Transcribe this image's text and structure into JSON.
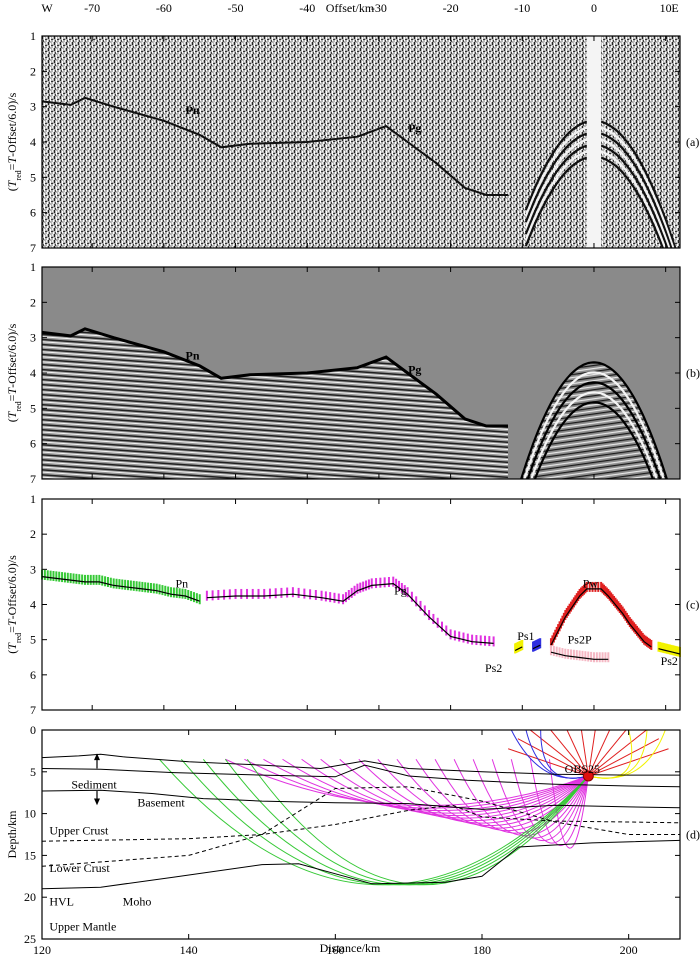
{
  "figure": {
    "top_axis": {
      "title": "Offset/km",
      "left_end": "W",
      "right_end": "E",
      "ticks": [
        -70,
        -60,
        -50,
        -40,
        -30,
        -20,
        -10,
        0,
        10
      ],
      "range": [
        -77,
        12
      ]
    },
    "bottom_axis": {
      "title": "Distance/km",
      "ticks": [
        120,
        140,
        160,
        180,
        200
      ],
      "range": [
        120,
        207
      ]
    }
  },
  "chart_data": [
    {
      "type": "heatmap",
      "panel_label": "(a)",
      "ylabel": "(T_red=T-Offset/6.0)/s",
      "yticks": [
        1,
        2,
        3,
        4,
        5,
        6,
        7
      ],
      "ylim": [
        1,
        7
      ],
      "annotations": [
        {
          "text": "Pn",
          "x": -56,
          "y": 3.1
        },
        {
          "text": "Pg",
          "x": -25,
          "y": 3.6
        }
      ]
    },
    {
      "type": "heatmap",
      "panel_label": "(b)",
      "ylabel": "(T_red=T-Offset/6.0)/s",
      "yticks": [
        1,
        2,
        3,
        4,
        5,
        6,
        7
      ],
      "ylim": [
        1,
        7
      ],
      "annotations": [
        {
          "text": "Pn",
          "x": -56,
          "y": 3.5
        },
        {
          "text": "Pg",
          "x": -25,
          "y": 3.9
        }
      ],
      "first_arrival": [
        [
          -77,
          2.85
        ],
        [
          -73,
          2.95
        ],
        [
          -71,
          2.75
        ],
        [
          -67,
          3.0
        ],
        [
          -60,
          3.4
        ],
        [
          -55,
          3.8
        ],
        [
          -52,
          4.15
        ],
        [
          -48,
          4.05
        ],
        [
          -40,
          4.0
        ],
        [
          -33,
          3.85
        ],
        [
          -29,
          3.55
        ],
        [
          -26,
          4.0
        ],
        [
          -22,
          4.6
        ],
        [
          -18,
          5.3
        ],
        [
          -15,
          5.5
        ],
        [
          -12,
          5.5
        ]
      ]
    },
    {
      "type": "scatter",
      "panel_label": "(c)",
      "ylabel": "(T_red=T-Offset/6.0)/s",
      "yticks": [
        1,
        2,
        3,
        4,
        5,
        6,
        7
      ],
      "ylim": [
        1,
        7
      ],
      "labels": [
        {
          "text": "Pn",
          "x": -57.5,
          "y": 3.4
        },
        {
          "text": "Pg",
          "x": -27,
          "y": 3.6
        },
        {
          "text": "Pw",
          "x": -0.5,
          "y": 3.4
        },
        {
          "text": "Ps1",
          "x": -9.5,
          "y": 4.9
        },
        {
          "text": "Ps2P",
          "x": -2,
          "y": 5.0
        },
        {
          "text": "Ps2",
          "x": -14,
          "y": 5.8
        },
        {
          "text": "Ps2",
          "x": 10.5,
          "y": 5.6
        }
      ],
      "series": [
        {
          "name": "Pn",
          "color": "#36c936",
          "x": [
            -77,
            -75,
            -73,
            -71,
            -69,
            -67,
            -65,
            -63,
            -61,
            -59,
            -57,
            -55
          ],
          "y": [
            3.15,
            3.2,
            3.25,
            3.3,
            3.3,
            3.4,
            3.45,
            3.5,
            3.55,
            3.65,
            3.7,
            3.85
          ]
        },
        {
          "name": "Pg",
          "color": "#e033e0",
          "x": [
            -54,
            -50,
            -46,
            -42,
            -38,
            -35,
            -33,
            -31,
            -28,
            -26,
            -23,
            -20,
            -17,
            -14
          ],
          "y": [
            3.75,
            3.7,
            3.7,
            3.65,
            3.75,
            3.85,
            3.55,
            3.4,
            3.35,
            3.65,
            4.3,
            4.85,
            5.0,
            5.05
          ]
        },
        {
          "name": "Ps2",
          "color": "#f2f200",
          "x": [
            -11,
            -10.5,
            -10
          ],
          "y": [
            5.25,
            5.2,
            5.15
          ]
        },
        {
          "name": "Ps1",
          "color": "#3030e0",
          "x": [
            -8.5,
            -8,
            -7.5
          ],
          "y": [
            5.2,
            5.15,
            5.1
          ]
        },
        {
          "name": "Pw",
          "color": "#e02020",
          "x": [
            -6,
            -5,
            -4,
            -3,
            -2,
            -1,
            1,
            2,
            3,
            4,
            5,
            6,
            7,
            8
          ],
          "y": [
            5.1,
            4.7,
            4.3,
            4.0,
            3.7,
            3.5,
            3.5,
            3.7,
            3.95,
            4.2,
            4.5,
            4.75,
            5.0,
            5.15
          ]
        },
        {
          "name": "Ps2P",
          "color": "#f5b8c4",
          "x": [
            -6,
            -4,
            -2,
            0,
            2
          ],
          "y": [
            5.3,
            5.4,
            5.45,
            5.5,
            5.5
          ]
        },
        {
          "name": "Ps2",
          "color": "#f2f200",
          "x": [
            9,
            10,
            11,
            12
          ],
          "y": [
            5.2,
            5.25,
            5.3,
            5.35
          ]
        }
      ]
    },
    {
      "type": "line",
      "panel_label": "(d)",
      "ylabel": "Depth/km",
      "xlabel": "Distance/km",
      "yticks": [
        0,
        5,
        10,
        15,
        20,
        25
      ],
      "ylim": [
        0,
        25
      ],
      "xlim": [
        120,
        207
      ],
      "station": {
        "name": "OBS25",
        "x": 194.5,
        "depth": 5.5
      },
      "layer_labels": [
        {
          "text": "Sediment",
          "x": 124,
          "y": 6.5
        },
        {
          "text": "Basement",
          "x": 133,
          "y": 8.7
        },
        {
          "text": "Upper Crust",
          "x": 121,
          "y": 12
        },
        {
          "text": "Lower Crust",
          "x": 121,
          "y": 16.5
        },
        {
          "text": "HVL",
          "x": 121,
          "y": 20.5
        },
        {
          "text": "Moho",
          "x": 131,
          "y": 20.5
        },
        {
          "text": "Upper Mantle",
          "x": 121,
          "y": 23.5
        }
      ],
      "interfaces": [
        {
          "name": "Seafloor",
          "style": "solid",
          "x": [
            120,
            125,
            128,
            131,
            140,
            150,
            158,
            164,
            170,
            180,
            190,
            200,
            207
          ],
          "y": [
            3.3,
            3.1,
            2.9,
            3.2,
            3.8,
            4.2,
            4.6,
            3.7,
            4.6,
            5.0,
            5.3,
            5.4,
            5.4
          ]
        },
        {
          "name": "Sediment base",
          "style": "solid",
          "x": [
            120,
            128,
            138,
            150,
            160,
            164,
            170,
            178,
            185,
            190,
            200,
            207
          ],
          "y": [
            4.6,
            4.7,
            5.1,
            5.4,
            5.6,
            4.2,
            5.5,
            6.0,
            6.3,
            6.5,
            6.7,
            6.8
          ]
        },
        {
          "name": "Basement",
          "style": "solid",
          "x": [
            120,
            128,
            135,
            142,
            145,
            150,
            160,
            170,
            180,
            190,
            200,
            207
          ],
          "y": [
            7.3,
            7.2,
            7.6,
            8.2,
            8.3,
            8.5,
            8.7,
            8.8,
            9.5,
            9.0,
            9.2,
            9.3
          ]
        },
        {
          "name": "Upper/Lower crust",
          "style": "dashed",
          "x": [
            120,
            140,
            150,
            160,
            170,
            176,
            180,
            190,
            200,
            207
          ],
          "y": [
            13.3,
            13.0,
            12.5,
            11.3,
            9.6,
            9.0,
            10.4,
            10.9,
            11.0,
            11.1
          ]
        },
        {
          "name": "HVL top",
          "style": "dashed",
          "x": [
            120,
            140,
            150,
            160,
            170,
            180,
            190,
            200,
            207
          ],
          "y": [
            16.3,
            15.0,
            12.5,
            7.0,
            6.8,
            8.5,
            11.0,
            12.5,
            12.5
          ]
        },
        {
          "name": "Moho",
          "style": "solid",
          "x": [
            120,
            128,
            138,
            150,
            155,
            165,
            175,
            180,
            185,
            195,
            207
          ],
          "y": [
            19.0,
            18.8,
            17.6,
            16.1,
            16.0,
            18.4,
            18.2,
            17.5,
            14.0,
            13.5,
            13.2
          ]
        }
      ],
      "ray_colors": {
        "Pg": "#e033e0",
        "Pn": "#36c936",
        "Pw": "#e02020",
        "Ps1": "#3030e0",
        "Ps2": "#f2f200"
      }
    }
  ]
}
